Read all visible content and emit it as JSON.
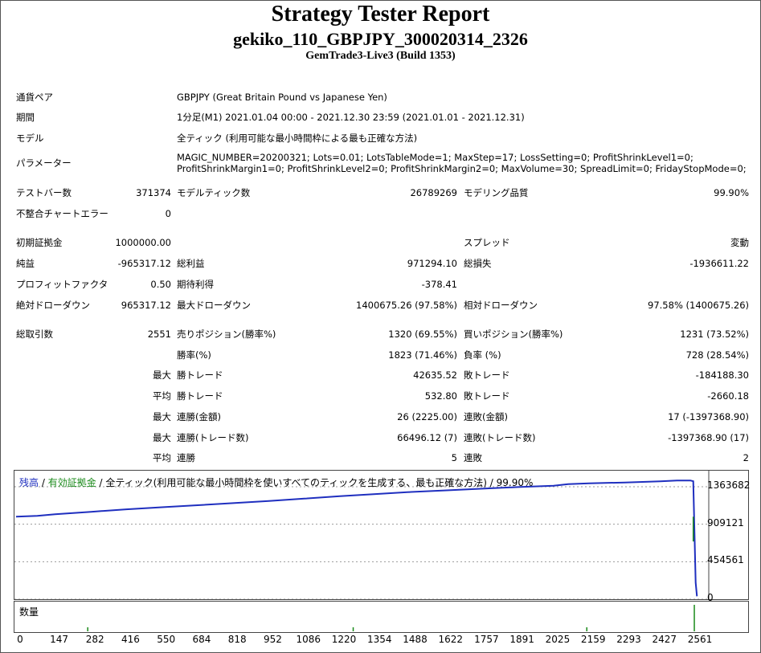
{
  "header": {
    "title": "Strategy Tester Report",
    "ea_name": "gekiko_110_GBPJPY_300020314_2326",
    "server": "GemTrade3-Live3 (Build 1353)"
  },
  "info": {
    "symbol_label": "通貨ペア",
    "symbol_value": "GBPJPY (Great Britain Pound vs Japanese Yen)",
    "period_label": "期間",
    "period_value": "1分足(M1) 2021.01.04 00:00 - 2021.12.30 23:59 (2021.01.01 - 2021.12.31)",
    "model_label": "モデル",
    "model_value": "全ティック (利用可能な最小時間枠による最も正確な方法)",
    "params_label": "パラメーター",
    "params_line1": "MAGIC_NUMBER=20200321; Lots=0.01; LotsTableMode=1; MaxStep=17; LossSetting=0; ProfitShrinkLevel1=0;",
    "params_line2": "ProfitShrinkMargin1=0; ProfitShrinkLevel2=0; ProfitShrinkMargin2=0; MaxVolume=30; SpreadLimit=0; FridayStopMode=0;"
  },
  "stats": {
    "bars_label": "テストバー数",
    "bars_value": "371374",
    "ticks_label": "モデルティック数",
    "ticks_value": "26789269",
    "quality_label": "モデリング品質",
    "quality_value": "99.90%",
    "mismatch_label": "不整合チャートエラー",
    "mismatch_value": "0",
    "deposit_label": "初期証拠金",
    "deposit_value": "1000000.00",
    "spread_label": "スプレッド",
    "spread_value": "変動",
    "net_label": "純益",
    "net_value": "-965317.12",
    "gross_profit_label": "総利益",
    "gross_profit_value": "971294.10",
    "gross_loss_label": "総損失",
    "gross_loss_value": "-1936611.22",
    "pf_label": "プロフィットファクタ",
    "pf_value": "0.50",
    "payoff_label": "期待利得",
    "payoff_value": "-378.41",
    "abs_dd_label": "絶対ドローダウン",
    "abs_dd_value": "965317.12",
    "max_dd_label": "最大ドローダウン",
    "max_dd_value": "1400675.26 (97.58%)",
    "rel_dd_label": "相対ドローダウン",
    "rel_dd_value": "97.58% (1400675.26)",
    "trades_label": "総取引数",
    "trades_value": "2551",
    "short_label": "売りポジション(勝率%)",
    "short_value": "1320 (69.55%)",
    "long_label": "買いポジション(勝率%)",
    "long_value": "1231 (73.52%)",
    "win_pct_label": "勝率(%)",
    "win_pct_value": "1823 (71.46%)",
    "loss_pct_label": "負率 (%)",
    "loss_pct_value": "728 (28.54%)",
    "max_label": "最大",
    "avg_label": "平均",
    "win_trade_label": "勝トレード",
    "loss_trade_label": "敗トレード",
    "largest_win_value": "42635.52",
    "largest_loss_value": "-184188.30",
    "avg_win_value": "532.80",
    "avg_loss_value": "-2660.18",
    "cons_win_amt_label": "連勝(金額)",
    "cons_win_amt_value": "26 (2225.00)",
    "cons_loss_amt_label": "連敗(金額)",
    "cons_loss_amt_value": "17 (-1397368.90)",
    "cons_win_cnt_label": "連勝(トレード数)",
    "cons_win_cnt_value": "66496.12 (7)",
    "cons_loss_cnt_label": "連敗(トレード数)",
    "cons_loss_cnt_value": "-1397368.90 (17)",
    "avg_cons_win_label": "連勝",
    "avg_cons_win_value": "5",
    "avg_cons_loss_label": "連敗",
    "avg_cons_loss_value": "2"
  },
  "chart_legend": {
    "balance": "残高",
    "sep1": " / ",
    "equity": "有効証拠金",
    "rest": " / 全ティック(利用可能な最小時間枠を使いすべてのティックを生成する、最も正確な方法) / 99.90%"
  },
  "volume_label": "数量",
  "colors": {
    "balance": "#1f2fbf",
    "equity": "#1a8a1a",
    "grid": "#9a9a9a"
  },
  "chart_data": {
    "type": "line",
    "ylim": [
      0,
      1600000
    ],
    "y_ticks": [
      "1363682",
      "909121",
      "454561",
      "0"
    ],
    "x_ticks": [
      "0",
      "147",
      "282",
      "416",
      "550",
      "684",
      "818",
      "952",
      "1086",
      "1220",
      "1354",
      "1488",
      "1622",
      "1757",
      "1891",
      "2025",
      "2159",
      "2293",
      "2427",
      "2561"
    ],
    "series": [
      {
        "name": "残高",
        "x": [
          0,
          80,
          147,
          282,
          416,
          550,
          684,
          818,
          952,
          1086,
          1220,
          1354,
          1488,
          1622,
          1757,
          1891,
          2025,
          2080,
          2159,
          2293,
          2427,
          2490,
          2540,
          2551,
          2560,
          2565
        ],
        "values": [
          1000000,
          1010000,
          1030000,
          1060000,
          1090000,
          1115000,
          1140000,
          1165000,
          1190000,
          1220000,
          1250000,
          1275000,
          1300000,
          1320000,
          1340000,
          1360000,
          1375000,
          1395000,
          1405000,
          1415000,
          1430000,
          1440000,
          1440000,
          1430000,
          200000,
          34682
        ]
      }
    ],
    "volume_marks": [
      270,
      1270,
      2150,
      2555
    ]
  }
}
